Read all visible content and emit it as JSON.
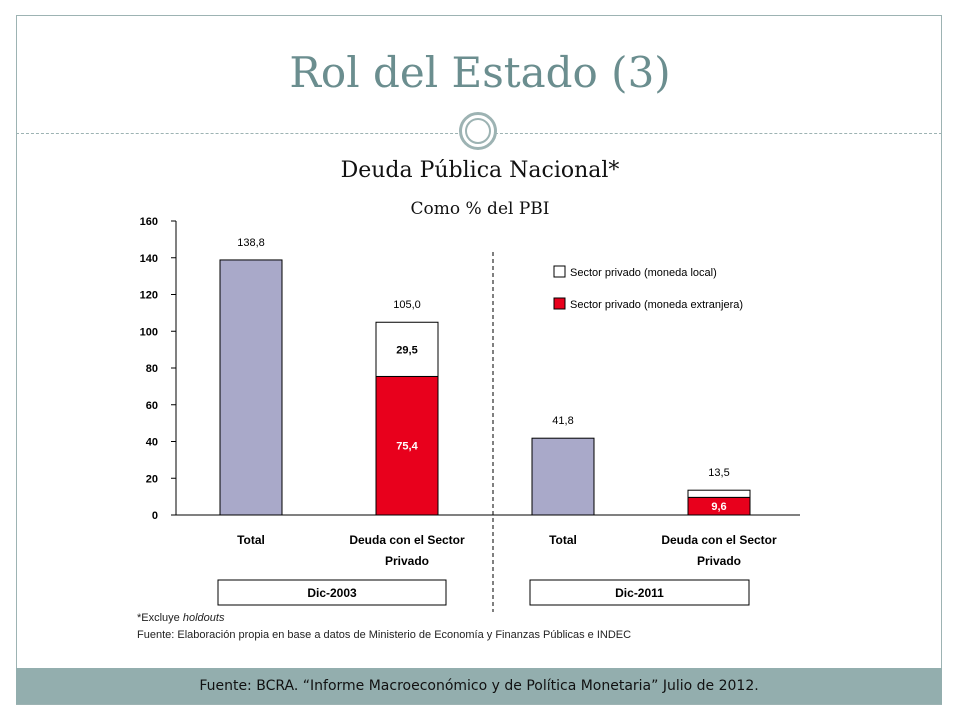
{
  "slide": {
    "title": "Rol del Estado (3)",
    "footer": "Fuente: BCRA. “Informe Macroeconómico y de Política Monetaria” Julio de 2012."
  },
  "chart_data": {
    "type": "bar",
    "title": "Deuda Pública Nacional*",
    "subtitle": "Como % del PBI",
    "ylim": [
      0,
      160
    ],
    "yticks": [
      0,
      20,
      40,
      60,
      80,
      100,
      120,
      140,
      160
    ],
    "categories": [
      "Total",
      "Deuda con el Sector Privado",
      "Total",
      "Deuda con el Sector Privado"
    ],
    "category_lines": [
      [
        "Total"
      ],
      [
        "Deuda con el Sector",
        "Privado"
      ],
      [
        "Total"
      ],
      [
        "Deuda con el Sector",
        "Privado"
      ]
    ],
    "groups": [
      {
        "label": "Dic-2003",
        "categories": [
          0,
          1
        ]
      },
      {
        "label": "Dic-2011",
        "categories": [
          2,
          3
        ]
      }
    ],
    "totals": [
      138.8,
      105.0,
      41.8,
      13.5
    ],
    "total_labels": [
      "138,8",
      "105,0",
      "41,8",
      "13,5"
    ],
    "series": [
      {
        "name": "",
        "values": [
          138.8,
          null,
          41.8,
          null
        ],
        "labels": [
          "",
          "",
          "",
          ""
        ],
        "color": "#a9a9c9"
      },
      {
        "name": "Sector privado (moneda extranjera)",
        "values": [
          null,
          75.4,
          null,
          9.6
        ],
        "labels": [
          "",
          "75,4",
          "",
          "9,6"
        ],
        "color": "#e8001c"
      },
      {
        "name": "Sector privado (moneda local)",
        "values": [
          null,
          29.5,
          null,
          3.9
        ],
        "labels": [
          "",
          "29,5",
          "",
          ""
        ],
        "color": "#ffffff"
      }
    ],
    "legend": [
      {
        "name": "Sector privado (moneda local)",
        "color": "#ffffff"
      },
      {
        "name": "Sector privado (moneda extranjera)",
        "color": "#e8001c"
      }
    ],
    "legend_position": "top-right",
    "grid": false,
    "footnote_prefix": "*Excluye ",
    "footnote_italic": "holdouts",
    "source": "Fuente: Elaboración propia en base a datos de Ministerio de Economía y Finanzas Públicas e INDEC"
  }
}
